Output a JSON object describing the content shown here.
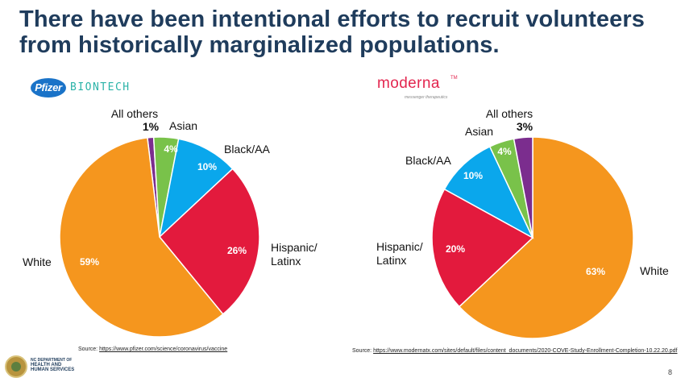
{
  "slide": {
    "title_line1": "There have been intentional efforts to recruit volunteers",
    "title_line2": "from historically marginalized populations.",
    "page_number": "8"
  },
  "logos": {
    "pfizer": "Pfizer",
    "biontech": "BIONTECH",
    "moderna": "moderna",
    "moderna_tm": "TM",
    "moderna_tagline": "messenger therapeutics",
    "dept_line1": "NC DEPARTMENT OF",
    "dept_line2": "HEALTH AND",
    "dept_line3": "HUMAN SERVICES"
  },
  "sources": {
    "label": "Source:",
    "pfizer_url": "https://www.pfizer.com/science/coronavirus/vaccine",
    "moderna_url": "https://www.modernatx.com/sites/default/files/content_documents/2020-COVE-Study-Enrollment-Completion-10.22.20.pdf"
  },
  "colors": {
    "title": "#1f3c5c",
    "white": "#f5961e",
    "hispanic": "#e31a3d",
    "black": "#0aa7ec",
    "asian": "#79c24a",
    "others": "#7b2d8e"
  },
  "chart_data": [
    {
      "type": "pie",
      "title": "",
      "slices": [
        {
          "key": "others",
          "name": "All others",
          "value": 1,
          "data_label": "1%"
        },
        {
          "key": "asian",
          "name": "Asian",
          "value": 4,
          "data_label": "4%"
        },
        {
          "key": "black",
          "name": "Black/AA",
          "value": 10,
          "data_label": "10%"
        },
        {
          "key": "hispanic",
          "name": "Hispanic/ Latinx",
          "name_line1": "Hispanic/",
          "name_line2": "Latinx",
          "value": 26,
          "data_label": "26%"
        },
        {
          "key": "white",
          "name": "White",
          "value": 59,
          "data_label": "59%"
        }
      ]
    },
    {
      "type": "pie",
      "title": "",
      "slices": [
        {
          "key": "white",
          "name": "White",
          "value": 63,
          "data_label": "63%"
        },
        {
          "key": "hispanic",
          "name": "Hispanic/ Latinx",
          "name_line1": "Hispanic/",
          "name_line2": "Latinx",
          "value": 20,
          "data_label": "20%"
        },
        {
          "key": "black",
          "name": "Black/AA",
          "value": 10,
          "data_label": "10%"
        },
        {
          "key": "asian",
          "name": "Asian",
          "value": 4,
          "data_label": "4%"
        },
        {
          "key": "others",
          "name": "All others",
          "value": 3,
          "data_label": "3%"
        }
      ]
    }
  ]
}
